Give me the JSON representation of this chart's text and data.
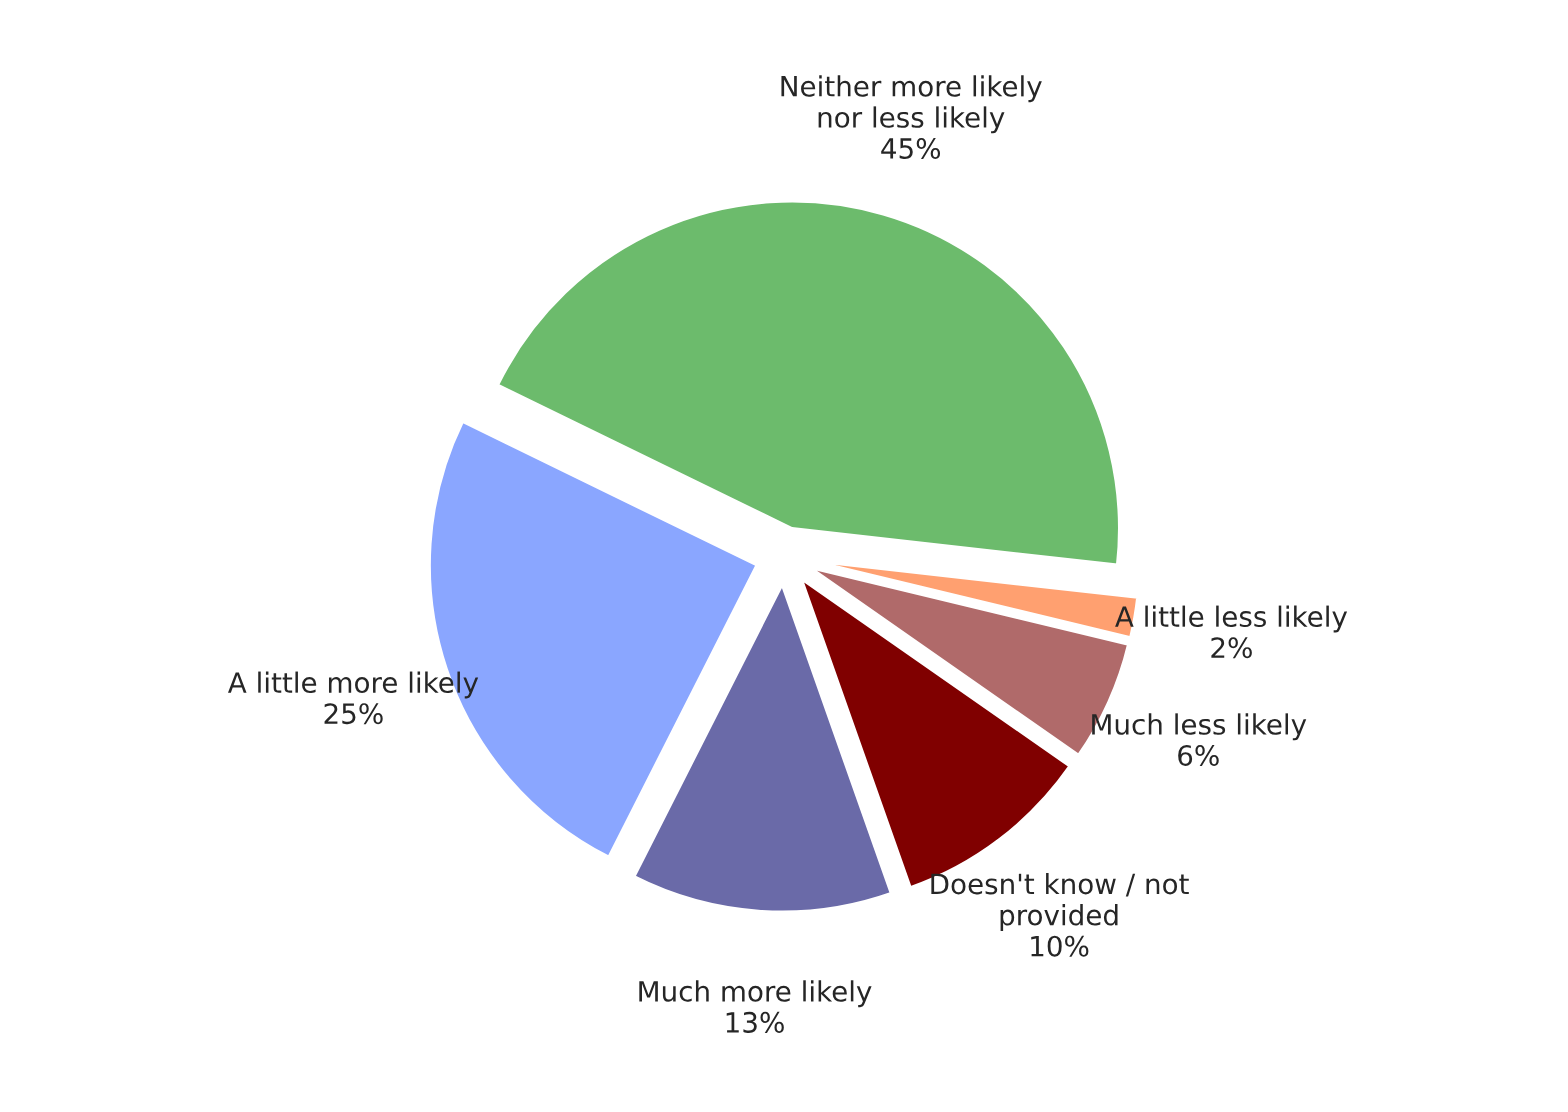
{
  "chart_data": {
    "type": "pie",
    "categories": [
      "Neither more likely\nnor less likely",
      "A little less likely",
      "Much less likely",
      "Doesn't know / not\nprovided",
      "Much more likely",
      "A little more likely"
    ],
    "values": [
      45,
      2,
      6,
      10,
      13,
      25
    ],
    "value_labels": [
      "45%",
      "2%",
      "6%",
      "10%",
      "13%",
      "25%"
    ],
    "colors": [
      "#6cbb6c",
      "#ffa070",
      "#b06a6a",
      "#800000",
      "#6a6aa8",
      "#8aa6ff"
    ]
  }
}
